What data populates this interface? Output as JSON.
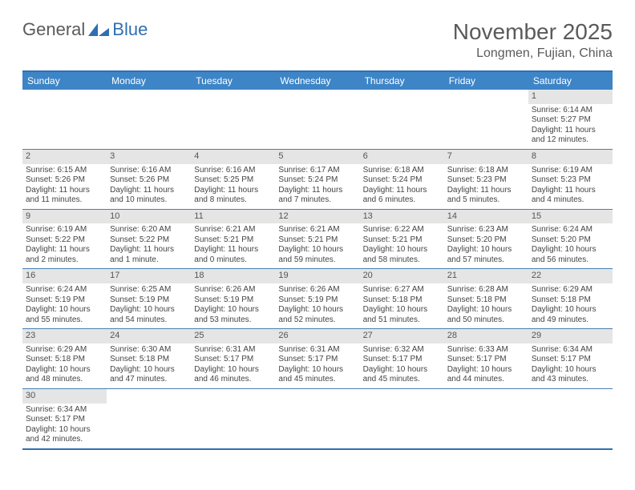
{
  "logo": {
    "text1": "General",
    "text2": "Blue"
  },
  "title": {
    "month_year": "November 2025",
    "location": "Longmen, Fujian, China"
  },
  "colors": {
    "header_bg": "#3d85c6",
    "header_fg": "#ffffff",
    "border": "#2f6fb0",
    "row_divider": "#4a7fb5",
    "daynum_bg": "#e5e5e5",
    "text": "#444444",
    "logo_gray": "#5a5a5a",
    "logo_blue": "#2f6fb0"
  },
  "days_of_week": [
    "Sunday",
    "Monday",
    "Tuesday",
    "Wednesday",
    "Thursday",
    "Friday",
    "Saturday"
  ],
  "weeks": [
    [
      null,
      null,
      null,
      null,
      null,
      null,
      {
        "n": 1,
        "sunrise": "Sunrise: 6:14 AM",
        "sunset": "Sunset: 5:27 PM",
        "daylight": "Daylight: 11 hours and 12 minutes."
      }
    ],
    [
      {
        "n": 2,
        "sunrise": "Sunrise: 6:15 AM",
        "sunset": "Sunset: 5:26 PM",
        "daylight": "Daylight: 11 hours and 11 minutes."
      },
      {
        "n": 3,
        "sunrise": "Sunrise: 6:16 AM",
        "sunset": "Sunset: 5:26 PM",
        "daylight": "Daylight: 11 hours and 10 minutes."
      },
      {
        "n": 4,
        "sunrise": "Sunrise: 6:16 AM",
        "sunset": "Sunset: 5:25 PM",
        "daylight": "Daylight: 11 hours and 8 minutes."
      },
      {
        "n": 5,
        "sunrise": "Sunrise: 6:17 AM",
        "sunset": "Sunset: 5:24 PM",
        "daylight": "Daylight: 11 hours and 7 minutes."
      },
      {
        "n": 6,
        "sunrise": "Sunrise: 6:18 AM",
        "sunset": "Sunset: 5:24 PM",
        "daylight": "Daylight: 11 hours and 6 minutes."
      },
      {
        "n": 7,
        "sunrise": "Sunrise: 6:18 AM",
        "sunset": "Sunset: 5:23 PM",
        "daylight": "Daylight: 11 hours and 5 minutes."
      },
      {
        "n": 8,
        "sunrise": "Sunrise: 6:19 AM",
        "sunset": "Sunset: 5:23 PM",
        "daylight": "Daylight: 11 hours and 4 minutes."
      }
    ],
    [
      {
        "n": 9,
        "sunrise": "Sunrise: 6:19 AM",
        "sunset": "Sunset: 5:22 PM",
        "daylight": "Daylight: 11 hours and 2 minutes."
      },
      {
        "n": 10,
        "sunrise": "Sunrise: 6:20 AM",
        "sunset": "Sunset: 5:22 PM",
        "daylight": "Daylight: 11 hours and 1 minute."
      },
      {
        "n": 11,
        "sunrise": "Sunrise: 6:21 AM",
        "sunset": "Sunset: 5:21 PM",
        "daylight": "Daylight: 11 hours and 0 minutes."
      },
      {
        "n": 12,
        "sunrise": "Sunrise: 6:21 AM",
        "sunset": "Sunset: 5:21 PM",
        "daylight": "Daylight: 10 hours and 59 minutes."
      },
      {
        "n": 13,
        "sunrise": "Sunrise: 6:22 AM",
        "sunset": "Sunset: 5:21 PM",
        "daylight": "Daylight: 10 hours and 58 minutes."
      },
      {
        "n": 14,
        "sunrise": "Sunrise: 6:23 AM",
        "sunset": "Sunset: 5:20 PM",
        "daylight": "Daylight: 10 hours and 57 minutes."
      },
      {
        "n": 15,
        "sunrise": "Sunrise: 6:24 AM",
        "sunset": "Sunset: 5:20 PM",
        "daylight": "Daylight: 10 hours and 56 minutes."
      }
    ],
    [
      {
        "n": 16,
        "sunrise": "Sunrise: 6:24 AM",
        "sunset": "Sunset: 5:19 PM",
        "daylight": "Daylight: 10 hours and 55 minutes."
      },
      {
        "n": 17,
        "sunrise": "Sunrise: 6:25 AM",
        "sunset": "Sunset: 5:19 PM",
        "daylight": "Daylight: 10 hours and 54 minutes."
      },
      {
        "n": 18,
        "sunrise": "Sunrise: 6:26 AM",
        "sunset": "Sunset: 5:19 PM",
        "daylight": "Daylight: 10 hours and 53 minutes."
      },
      {
        "n": 19,
        "sunrise": "Sunrise: 6:26 AM",
        "sunset": "Sunset: 5:19 PM",
        "daylight": "Daylight: 10 hours and 52 minutes."
      },
      {
        "n": 20,
        "sunrise": "Sunrise: 6:27 AM",
        "sunset": "Sunset: 5:18 PM",
        "daylight": "Daylight: 10 hours and 51 minutes."
      },
      {
        "n": 21,
        "sunrise": "Sunrise: 6:28 AM",
        "sunset": "Sunset: 5:18 PM",
        "daylight": "Daylight: 10 hours and 50 minutes."
      },
      {
        "n": 22,
        "sunrise": "Sunrise: 6:29 AM",
        "sunset": "Sunset: 5:18 PM",
        "daylight": "Daylight: 10 hours and 49 minutes."
      }
    ],
    [
      {
        "n": 23,
        "sunrise": "Sunrise: 6:29 AM",
        "sunset": "Sunset: 5:18 PM",
        "daylight": "Daylight: 10 hours and 48 minutes."
      },
      {
        "n": 24,
        "sunrise": "Sunrise: 6:30 AM",
        "sunset": "Sunset: 5:18 PM",
        "daylight": "Daylight: 10 hours and 47 minutes."
      },
      {
        "n": 25,
        "sunrise": "Sunrise: 6:31 AM",
        "sunset": "Sunset: 5:17 PM",
        "daylight": "Daylight: 10 hours and 46 minutes."
      },
      {
        "n": 26,
        "sunrise": "Sunrise: 6:31 AM",
        "sunset": "Sunset: 5:17 PM",
        "daylight": "Daylight: 10 hours and 45 minutes."
      },
      {
        "n": 27,
        "sunrise": "Sunrise: 6:32 AM",
        "sunset": "Sunset: 5:17 PM",
        "daylight": "Daylight: 10 hours and 45 minutes."
      },
      {
        "n": 28,
        "sunrise": "Sunrise: 6:33 AM",
        "sunset": "Sunset: 5:17 PM",
        "daylight": "Daylight: 10 hours and 44 minutes."
      },
      {
        "n": 29,
        "sunrise": "Sunrise: 6:34 AM",
        "sunset": "Sunset: 5:17 PM",
        "daylight": "Daylight: 10 hours and 43 minutes."
      }
    ],
    [
      {
        "n": 30,
        "sunrise": "Sunrise: 6:34 AM",
        "sunset": "Sunset: 5:17 PM",
        "daylight": "Daylight: 10 hours and 42 minutes."
      },
      null,
      null,
      null,
      null,
      null,
      null
    ]
  ]
}
